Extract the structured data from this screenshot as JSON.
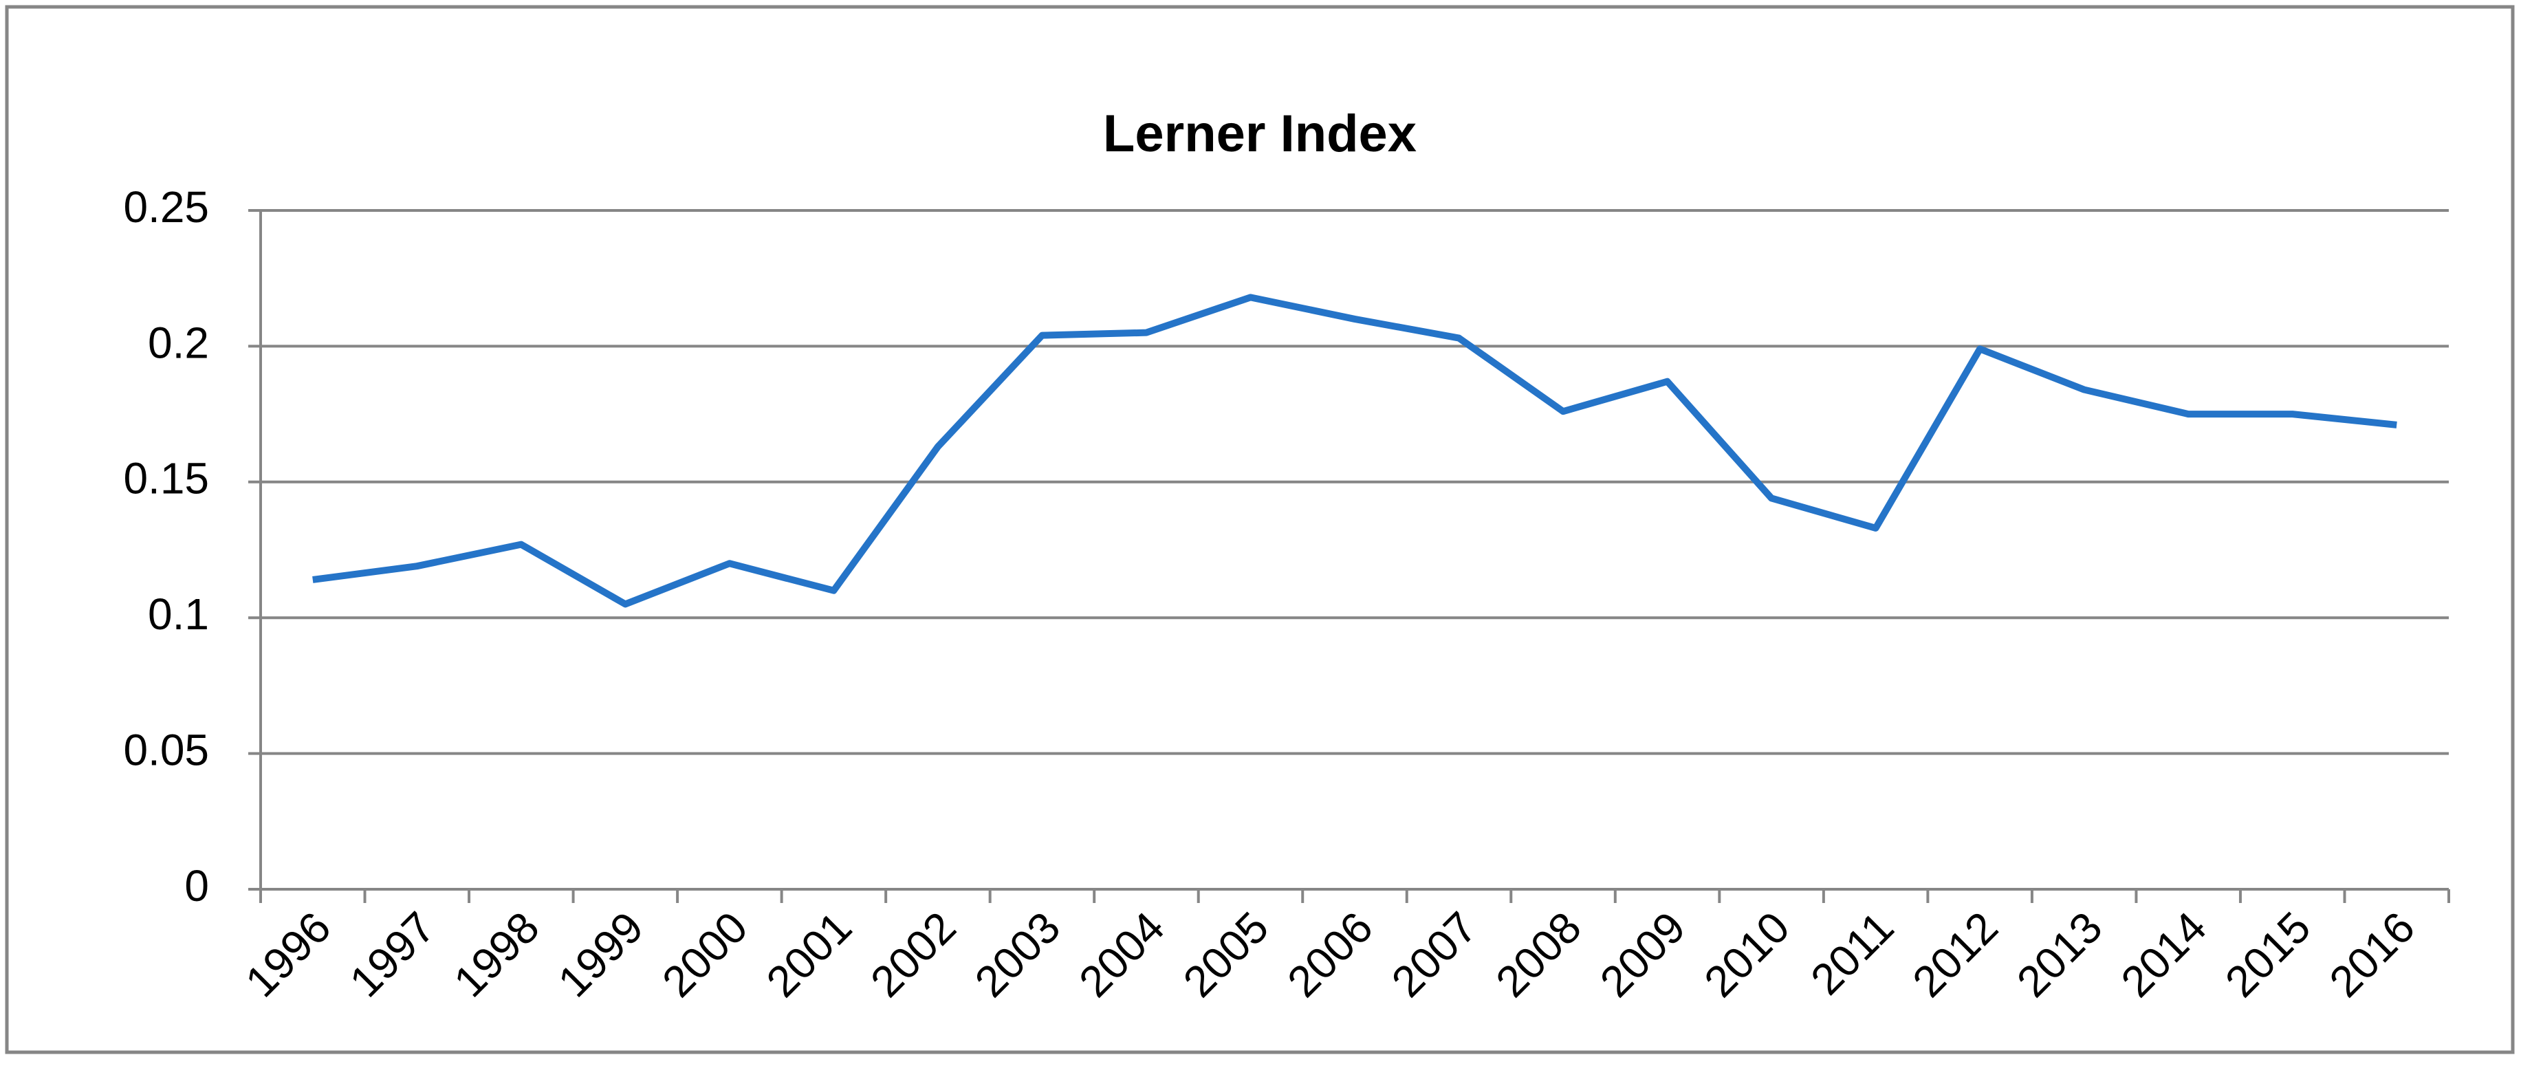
{
  "chart_data": {
    "type": "line",
    "title": "Lerner Index",
    "categories": [
      "1996",
      "1997",
      "1998",
      "1999",
      "2000",
      "2001",
      "2002",
      "2003",
      "2004",
      "2005",
      "2006",
      "2007",
      "2008",
      "2009",
      "2010",
      "2011",
      "2012",
      "2013",
      "2014",
      "2015",
      "2016"
    ],
    "series": [
      {
        "color": "#2574c8",
        "values": [
          0.114,
          0.119,
          0.127,
          0.105,
          0.12,
          0.11,
          0.163,
          0.204,
          0.205,
          0.218,
          0.21,
          0.203,
          0.176,
          0.187,
          0.144,
          0.133,
          0.199,
          0.184,
          0.175,
          0.175,
          0.171
        ]
      }
    ],
    "ylim": [
      0,
      0.25
    ],
    "yticks": [
      0,
      0.05,
      0.1,
      0.15,
      0.2,
      0.25
    ],
    "grid": true
  }
}
